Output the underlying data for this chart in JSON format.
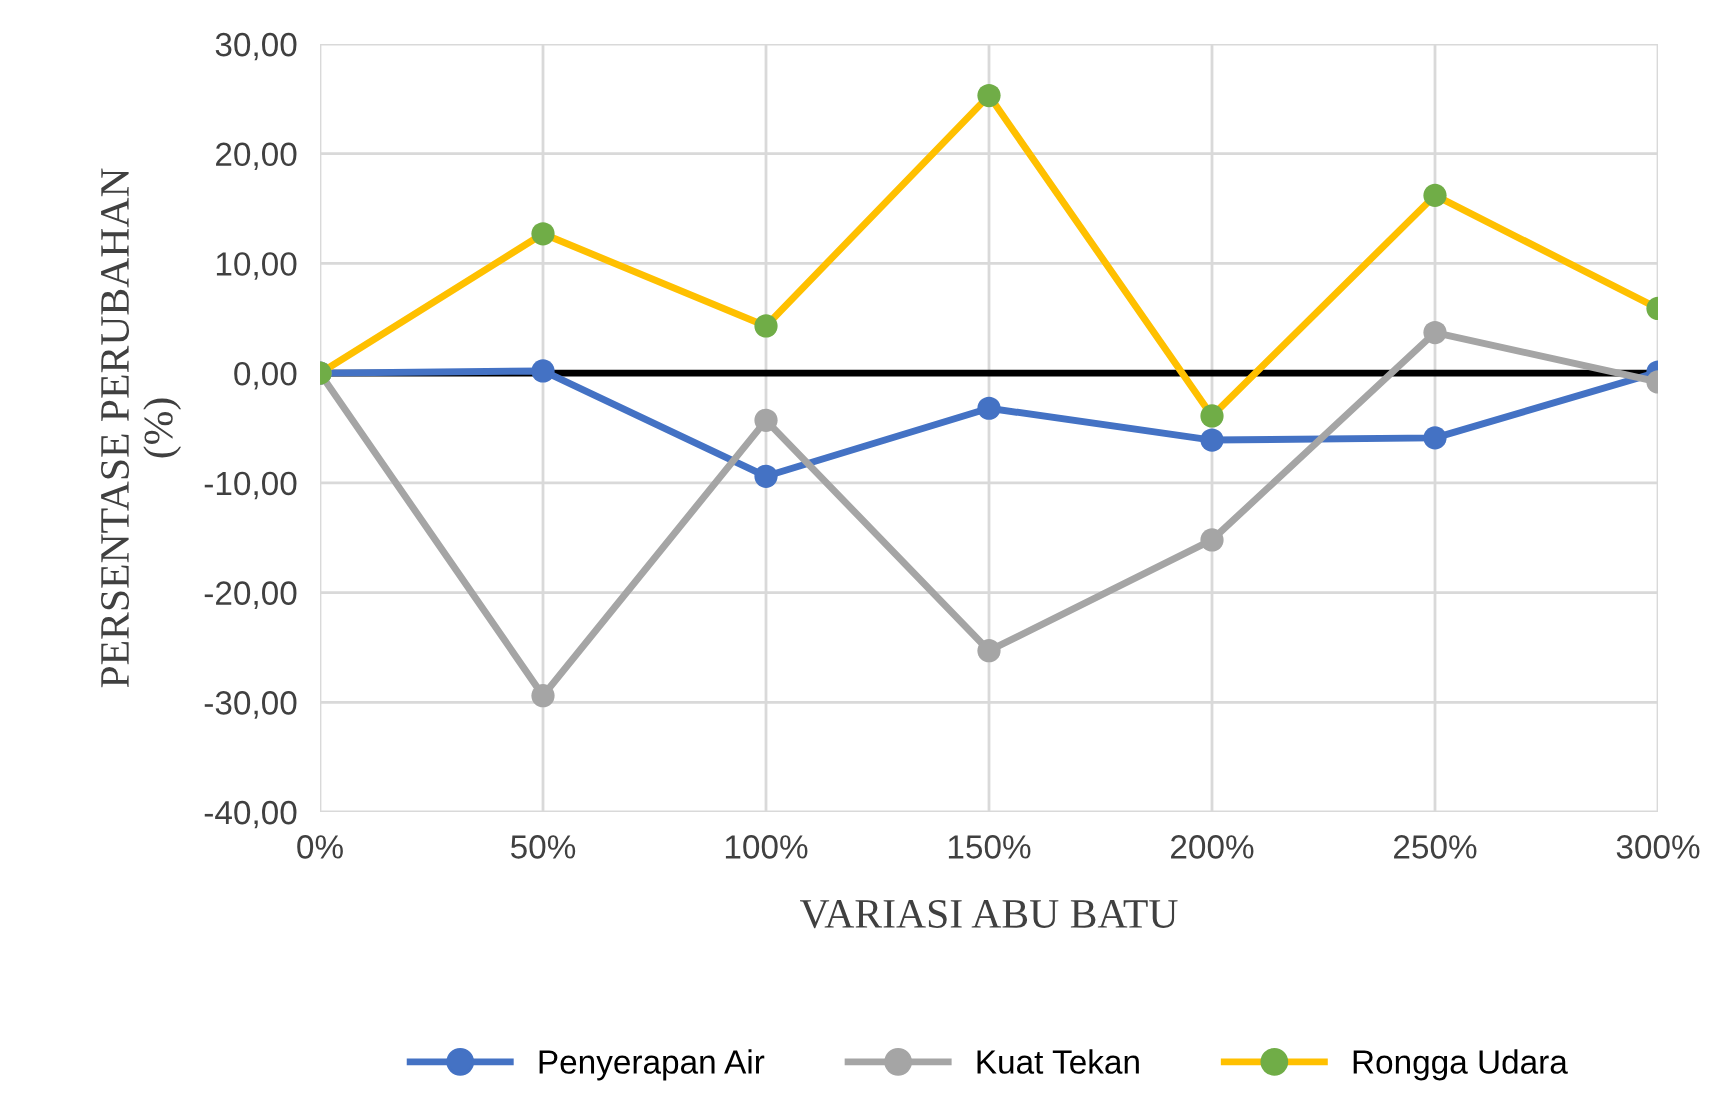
{
  "chart_data": {
    "type": "line",
    "xlabel": "VARIASI ABU BATU",
    "ylabel": "PERSENTASE PERUBAHAN\n(%)",
    "categories": [
      "0%",
      "50%",
      "100%",
      "150%",
      "200%",
      "250%",
      "300%"
    ],
    "series": [
      {
        "name": "Penyerapan Air",
        "color": "#4472c4",
        "values": [
          0,
          0.2,
          -9.4,
          -3.2,
          -6.1,
          -5.9,
          0.1
        ]
      },
      {
        "name": "Kuat Tekan",
        "color": "#a5a5a5",
        "values": [
          0,
          -29.4,
          -4.3,
          -25.3,
          -15.2,
          3.7,
          -0.8
        ]
      },
      {
        "name": "Rongga Udara",
        "color": "#ffc000",
        "colors": [
          "#70ad47",
          "#70ad47",
          "#70ad47",
          "#70ad47",
          "#70ad47",
          "#70ad47",
          "#70ad47"
        ],
        "values": [
          0,
          12.7,
          4.3,
          25.3,
          -3.9,
          16.2,
          5.9
        ]
      }
    ],
    "ylim": [
      -40,
      30
    ],
    "yticks": [
      {
        "value": -40,
        "label": "-40,00"
      },
      {
        "value": -30,
        "label": "-30,00"
      },
      {
        "value": -20,
        "label": "-20,00"
      },
      {
        "value": -10,
        "label": "-10,00"
      },
      {
        "value": 0,
        "label": "0,00"
      },
      {
        "value": 10,
        "label": "10,00"
      },
      {
        "value": 20,
        "label": "20,00"
      },
      {
        "value": 30,
        "label": "30,00"
      }
    ],
    "ref_lines": [
      {
        "axis": "y",
        "value": 0,
        "color": "#000000"
      }
    ],
    "grid": true,
    "legend": "bottom",
    "marker": "circle",
    "line_style": "solid"
  }
}
